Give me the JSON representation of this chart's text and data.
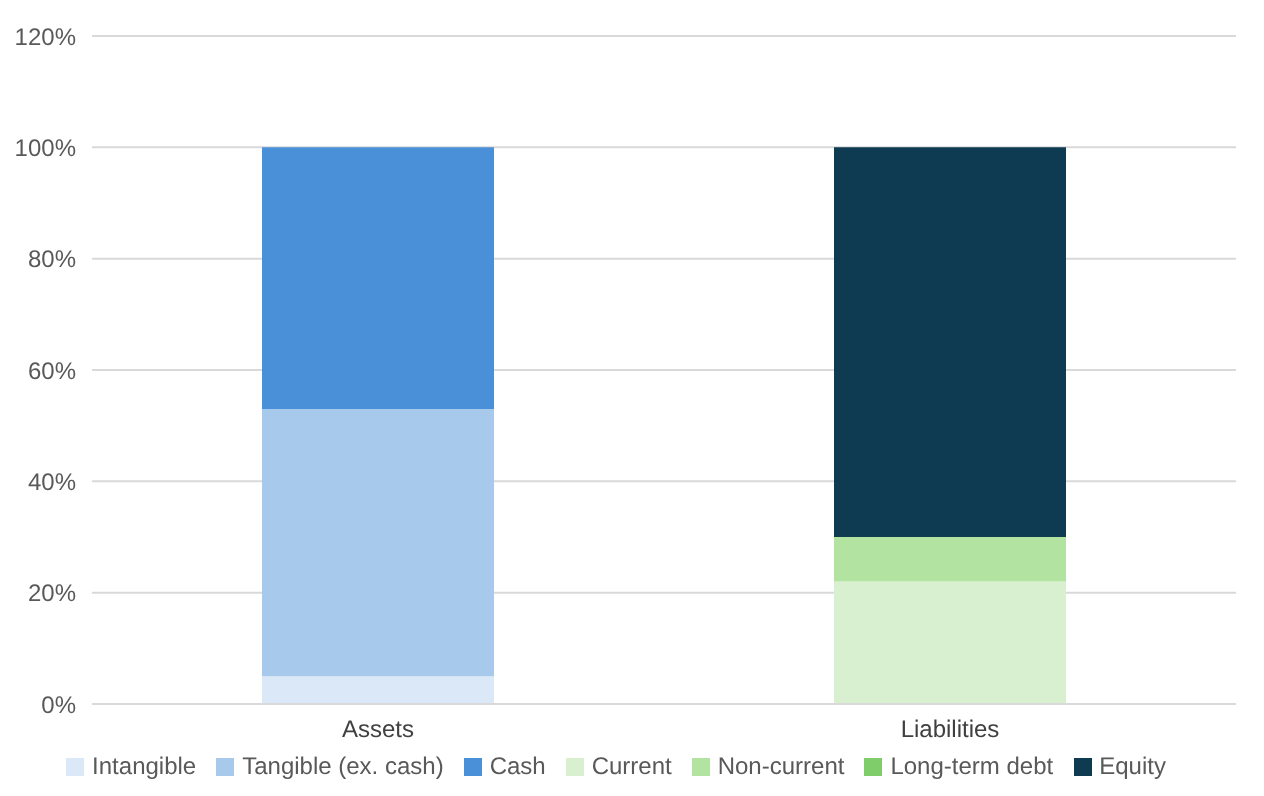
{
  "chart_data": {
    "type": "bar",
    "stacked": true,
    "categories": [
      "Assets",
      "Liabilities"
    ],
    "series": [
      {
        "name": "Intangible",
        "color": "#dae8f7",
        "values": [
          5,
          null
        ]
      },
      {
        "name": "Tangible (ex. cash)",
        "color": "#a7c9ec",
        "values": [
          48,
          null
        ]
      },
      {
        "name": "Cash",
        "color": "#4a90d9",
        "values": [
          47,
          null
        ]
      },
      {
        "name": "Current",
        "color": "#d9f0d0",
        "values": [
          null,
          22
        ]
      },
      {
        "name": "Non-current",
        "color": "#b3e3a0",
        "values": [
          null,
          8
        ]
      },
      {
        "name": "Long-term debt",
        "color": "#7fcc6a",
        "values": [
          null,
          0
        ]
      },
      {
        "name": "Equity",
        "color": "#0e3a52",
        "values": [
          null,
          70
        ]
      }
    ],
    "ylim": [
      0,
      120
    ],
    "yticks": [
      {
        "value": 0,
        "label": "0%"
      },
      {
        "value": 20,
        "label": "20%"
      },
      {
        "value": 40,
        "label": "40%"
      },
      {
        "value": 60,
        "label": "60%"
      },
      {
        "value": 80,
        "label": "80%"
      },
      {
        "value": 100,
        "label": "100%"
      },
      {
        "value": 120,
        "label": "120%"
      }
    ],
    "grid": "y",
    "legend": "bottom"
  }
}
